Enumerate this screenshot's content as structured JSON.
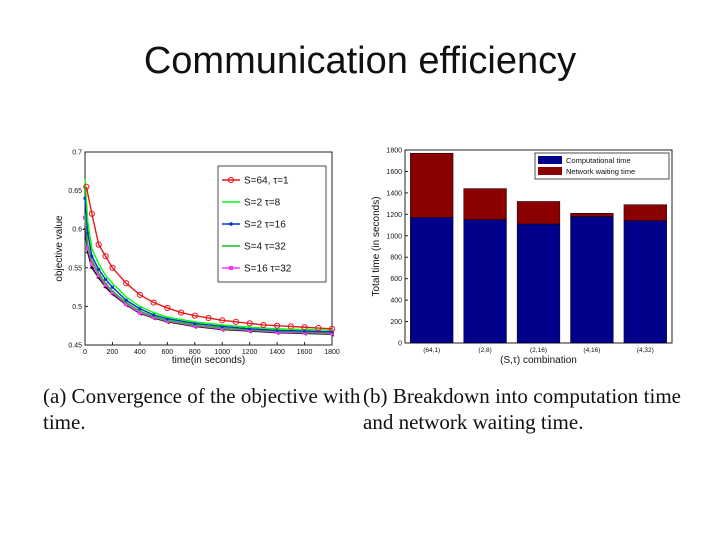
{
  "slide": {
    "title": "Communication efficiency"
  },
  "captions": {
    "a": "(a) Convergence of the objective with time.",
    "b": "(b) Breakdown into computation time and network waiting time."
  },
  "chart_data": [
    {
      "type": "line",
      "title": "",
      "xlabel": "time(in seconds)",
      "ylabel": "objective value",
      "xlim": [
        0,
        1800
      ],
      "ylim": [
        0.45,
        0.7
      ],
      "xticks": [
        0,
        200,
        400,
        600,
        800,
        1000,
        1200,
        1400,
        1600,
        1800
      ],
      "yticks": [
        0.45,
        0.5,
        0.55,
        0.6,
        0.65,
        0.7
      ],
      "legend_position": "top-right",
      "series": [
        {
          "name": "S=64, τ=1",
          "color": "#e41a1c",
          "marker": "circle",
          "x": [
            10,
            50,
            100,
            150,
            200,
            300,
            400,
            500,
            600,
            700,
            800,
            900,
            1000,
            1100,
            1200,
            1300,
            1400,
            1500,
            1600,
            1700,
            1800
          ],
          "y": [
            0.655,
            0.62,
            0.58,
            0.565,
            0.55,
            0.53,
            0.515,
            0.505,
            0.498,
            0.492,
            0.488,
            0.485,
            0.482,
            0.48,
            0.478,
            0.476,
            0.475,
            0.474,
            0.473,
            0.472,
            0.471
          ]
        },
        {
          "name": "S=2 τ=8",
          "color": "#00ff00",
          "marker": "none",
          "x": [
            0,
            20,
            50,
            100,
            150,
            200,
            300,
            400,
            500,
            600,
            800,
            1000,
            1200,
            1400,
            1600,
            1800
          ],
          "y": [
            0.665,
            0.61,
            0.575,
            0.555,
            0.54,
            0.53,
            0.512,
            0.5,
            0.492,
            0.486,
            0.48,
            0.476,
            0.473,
            0.471,
            0.47,
            0.469
          ]
        },
        {
          "name": "S=2 τ=16",
          "color": "#0033cc",
          "marker": "dot",
          "x": [
            0,
            20,
            50,
            100,
            150,
            200,
            300,
            400,
            500,
            600,
            800,
            1000,
            1200,
            1400,
            1600,
            1800
          ],
          "y": [
            0.64,
            0.595,
            0.565,
            0.548,
            0.535,
            0.525,
            0.508,
            0.497,
            0.489,
            0.484,
            0.478,
            0.474,
            0.471,
            0.469,
            0.468,
            0.467
          ]
        },
        {
          "name": "S=4 τ=32",
          "color": "#22bb22",
          "marker": "none",
          "x": [
            0,
            20,
            50,
            100,
            150,
            200,
            300,
            400,
            500,
            600,
            800,
            1000,
            1200,
            1400,
            1600,
            1800
          ],
          "y": [
            0.62,
            0.58,
            0.56,
            0.543,
            0.53,
            0.52,
            0.505,
            0.494,
            0.487,
            0.482,
            0.476,
            0.472,
            0.47,
            0.468,
            0.467,
            0.466
          ]
        },
        {
          "name": "S=16 τ=32",
          "color": "#ff33ff",
          "marker": "square",
          "x": [
            0,
            20,
            50,
            100,
            150,
            200,
            300,
            400,
            500,
            600,
            800,
            1000,
            1200,
            1400,
            1600,
            1800
          ],
          "y": [
            0.615,
            0.575,
            0.555,
            0.54,
            0.528,
            0.518,
            0.503,
            0.492,
            0.486,
            0.481,
            0.475,
            0.471,
            0.469,
            0.467,
            0.466,
            0.465
          ]
        },
        {
          "name": "",
          "color": "#111111",
          "marker": "triangle",
          "x": [
            0,
            20,
            50,
            100,
            150,
            200,
            300,
            400,
            500,
            600,
            800,
            1000,
            1200,
            1400,
            1600,
            1800
          ],
          "y": [
            0.6,
            0.57,
            0.55,
            0.537,
            0.525,
            0.516,
            0.502,
            0.491,
            0.485,
            0.48,
            0.474,
            0.47,
            0.468,
            0.466,
            0.465,
            0.464
          ]
        }
      ]
    },
    {
      "type": "bar",
      "stacked": true,
      "title": "",
      "xlabel": "(S,τ) combination",
      "ylabel": "Total time (in seconds)",
      "ylim": [
        0,
        1800
      ],
      "yticks": [
        0,
        200,
        400,
        600,
        800,
        1000,
        1200,
        1400,
        1600,
        1800
      ],
      "categories": [
        "(64,1)",
        "(2,8)",
        "(2,16)",
        "(4,16)",
        "(4,32)"
      ],
      "legend_position": "top-right",
      "series": [
        {
          "name": "Computational time",
          "color": "#00008b",
          "values": [
            1170,
            1150,
            1110,
            1180,
            1140
          ]
        },
        {
          "name": "Network waiting time",
          "color": "#8b0000",
          "values": [
            600,
            290,
            210,
            30,
            150
          ]
        }
      ]
    }
  ]
}
